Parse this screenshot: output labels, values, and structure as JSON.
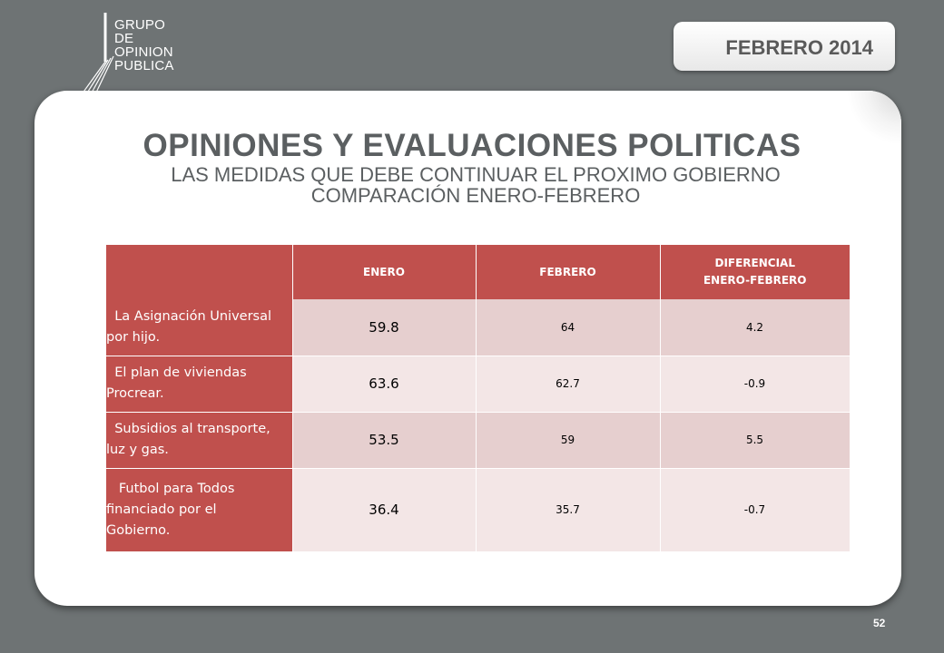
{
  "logo": {
    "lines": [
      "GRUPO",
      "DE",
      "OPINION",
      "PUBLICA"
    ]
  },
  "date_tab": "FEBRERO 2014",
  "title": "OPINIONES Y EVALUACIONES POLITICAS",
  "subtitle_line1": "LAS MEDIDAS QUE DEBE CONTINUAR EL PROXIMO GOBIERNO",
  "subtitle_line2": "COMPARACIÓN ENERO-FEBRERO",
  "table": {
    "headers": {
      "label": "",
      "enero": "ENERO",
      "febrero": "FEBRERO",
      "diferencial_line1": "DIFERENCIAL",
      "diferencial_line2": "ENERO-FEBRERO"
    },
    "rows": [
      {
        "label_lines": [
          "  La Asignación Universal",
          "por hijo."
        ],
        "enero": "59.8",
        "febrero": "64",
        "diferencial": "4.2"
      },
      {
        "label_lines": [
          "  El plan de viviendas",
          "Procrear."
        ],
        "enero": "63.6",
        "febrero": "62.7",
        "diferencial": "-0.9"
      },
      {
        "label_lines": [
          "  Subsidios al transporte,",
          "luz y gas."
        ],
        "enero": "53.5",
        "febrero": "59",
        "diferencial": "5.5"
      },
      {
        "label_lines": [
          "   Futbol para Todos",
          "financiado por el",
          "Gobierno."
        ],
        "enero": "36.4",
        "febrero": "35.7",
        "diferencial": "-0.7"
      }
    ]
  },
  "page_number": "52",
  "colors": {
    "background": "#6e7374",
    "header_red": "#c0504d",
    "row_dark": "#e6cfcf",
    "row_light": "#f3e6e6",
    "title_gray": "#5b5f61"
  }
}
